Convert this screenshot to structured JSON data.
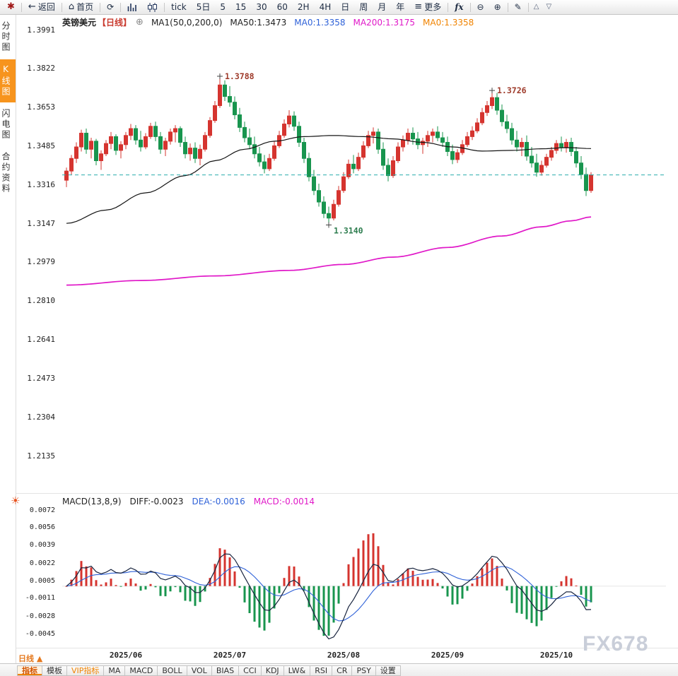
{
  "watermark": "FX678",
  "toolbar": {
    "items": [
      {
        "t": "icon",
        "name": "app-icon",
        "glyph": "✱",
        "cls": "tb-red",
        "inter": false
      },
      {
        "t": "sep"
      },
      {
        "t": "btn",
        "name": "back-button",
        "glyph": "←",
        "label": "返回"
      },
      {
        "t": "sep"
      },
      {
        "t": "btn",
        "name": "home-button",
        "glyph": "⌂",
        "label": "首页"
      },
      {
        "t": "sep"
      },
      {
        "t": "icon",
        "name": "refresh-icon",
        "glyph": "⟳",
        "inter": true
      },
      {
        "t": "sep"
      },
      {
        "t": "svg",
        "name": "timeshare-chart-icon",
        "icon": "bars"
      },
      {
        "t": "svg",
        "name": "candlestick-chart-icon",
        "icon": "candles"
      },
      {
        "t": "sep"
      },
      {
        "t": "txt",
        "name": "period-tick-button",
        "label": "tick"
      },
      {
        "t": "txt",
        "name": "period-5day-button",
        "label": "5日"
      },
      {
        "t": "txt",
        "name": "period-5-button",
        "label": "5"
      },
      {
        "t": "txt",
        "name": "period-15-button",
        "label": "15"
      },
      {
        "t": "txt",
        "name": "period-30-button",
        "label": "30"
      },
      {
        "t": "txt",
        "name": "period-60-button",
        "label": "60"
      },
      {
        "t": "txt",
        "name": "period-2h-button",
        "label": "2H"
      },
      {
        "t": "txt",
        "name": "period-day-button-4h",
        "label": "4H"
      },
      {
        "t": "txt",
        "name": "period-day-button",
        "label": "日"
      },
      {
        "t": "txt",
        "name": "period-week-button",
        "label": "周"
      },
      {
        "t": "txt",
        "name": "period-month-button",
        "label": "月"
      },
      {
        "t": "txt",
        "name": "period-year-button",
        "label": "年"
      },
      {
        "t": "btn",
        "name": "more-button",
        "glyph": "≡",
        "label": "更多"
      },
      {
        "t": "sep"
      },
      {
        "t": "txt",
        "name": "fx-functions-button",
        "label": "fx",
        "cls": "tb-fx"
      },
      {
        "t": "sep"
      },
      {
        "t": "icon",
        "name": "zoom-out-icon",
        "glyph": "⊖",
        "inter": true
      },
      {
        "t": "icon",
        "name": "zoom-in-icon",
        "glyph": "⊕",
        "inter": true
      },
      {
        "t": "sep"
      },
      {
        "t": "icon",
        "name": "draw-pencil-icon",
        "glyph": "✎",
        "inter": true
      },
      {
        "t": "sep"
      },
      {
        "t": "icon",
        "name": "collapse-up-icon",
        "glyph": "△",
        "cls": "tb-tri",
        "inter": true
      },
      {
        "t": "icon",
        "name": "collapse-down-icon",
        "glyph": "▽",
        "cls": "tb-tri",
        "inter": true
      }
    ]
  },
  "sidebar": {
    "sun_glyph": "☀",
    "items": [
      {
        "label": "分时图",
        "name": "tab-timeshare-chart",
        "active": false
      },
      {
        "label": "K线图",
        "name": "tab-kline-chart",
        "active": true
      },
      {
        "label": "闪电图",
        "name": "tab-lightning-chart",
        "active": false
      },
      {
        "label": "合约资料",
        "name": "tab-contract-info",
        "active": false
      }
    ]
  },
  "price_header": {
    "parts": [
      {
        "text": "英镑美元",
        "cls": "c-sym",
        "name": "symbol-name",
        "inter": false
      },
      {
        "text": "【日线】",
        "cls": "c-period",
        "name": "period-tag",
        "inter": false
      },
      {
        "text": "⊕",
        "cls": "c-plus",
        "name": "add-indicator-icon",
        "inter": true
      },
      {
        "text": "MA1(50,0,200,0)",
        "cls": "c-k",
        "name": "ma-settings-label",
        "inter": false
      },
      {
        "text": "MA50:1.3473",
        "cls": "c-k",
        "name": "ma50-value",
        "inter": false
      },
      {
        "text": "MA0:1.3358",
        "cls": "c-blue",
        "name": "ma0-blue-value",
        "inter": false
      },
      {
        "text": "MA200:1.3175",
        "cls": "c-magenta",
        "name": "ma200-value",
        "inter": false
      },
      {
        "text": "MA0:1.3358",
        "cls": "c-orange",
        "name": "ma0-orange-value",
        "inter": false
      }
    ]
  },
  "macd_header": {
    "parts": [
      {
        "text": "MACD(13,8,9)",
        "cls": "c-k",
        "name": "macd-title",
        "inter": false
      },
      {
        "text": "DIFF:-0.0023",
        "cls": "c-k",
        "name": "diff-value",
        "inter": false
      },
      {
        "text": "DEA:-0.0016",
        "cls": "c-blue",
        "name": "dea-value",
        "inter": false
      },
      {
        "text": "MACD:-0.0014",
        "cls": "c-magenta",
        "name": "macd-value",
        "inter": false
      }
    ]
  },
  "bottom_bar": {
    "period_label": "日线",
    "period_arrow": "▲",
    "buttons": [
      {
        "label": "指标",
        "name": "indicator-tab",
        "selected": true
      },
      {
        "label": "模板",
        "name": "template-tab"
      },
      {
        "label": "VIP指标",
        "name": "vip-indicator-tab",
        "vip": true
      },
      {
        "label": "MA",
        "name": "ma-indicator-button"
      },
      {
        "label": "MACD",
        "name": "macd-indicator-button"
      },
      {
        "label": "BOLL",
        "name": "boll-indicator-button"
      },
      {
        "label": "VOL",
        "name": "vol-indicator-button"
      },
      {
        "label": "BIAS",
        "name": "bias-indicator-button"
      },
      {
        "label": "CCI",
        "name": "cci-indicator-button"
      },
      {
        "label": "KDJ",
        "name": "kdj-indicator-button"
      },
      {
        "label": "LW&",
        "name": "lw-indicator-button"
      },
      {
        "label": "RSI",
        "name": "rsi-indicator-button"
      },
      {
        "label": "CR",
        "name": "cr-indicator-button"
      },
      {
        "label": "PSY",
        "name": "psy-indicator-button"
      },
      {
        "label": "设置",
        "name": "settings-button"
      }
    ]
  },
  "chart_data": {
    "type": "candlestick",
    "symbol": "英镑美元",
    "period": "日线",
    "price_axis": {
      "max": 1.3991,
      "min": 1.2135
    },
    "macd_axis": {
      "max": 0.0072,
      "min": -0.0045
    },
    "y_axis_labels": [
      "1.3991",
      "1.3822",
      "1.3653",
      "1.3485",
      "1.3316",
      "1.3147",
      "1.2979",
      "1.2810",
      "1.2641",
      "1.2473",
      "1.2304",
      "1.2135"
    ],
    "macd_y_axis_labels": [
      "0.0072",
      "0.0056",
      "0.0039",
      "0.0022",
      "0.0005",
      "-0.0011",
      "-0.0028",
      "-0.0045"
    ],
    "x_axis_labels": [
      {
        "label": "2025/06",
        "index": 12
      },
      {
        "label": "2025/07",
        "index": 33
      },
      {
        "label": "2025/08",
        "index": 56
      },
      {
        "label": "2025/09",
        "index": 77
      },
      {
        "label": "2025/10",
        "index": 99
      }
    ],
    "dashed_line_price": 1.3358,
    "annotations": [
      {
        "text": "1.3788",
        "index": 31,
        "price": 1.3788,
        "kind": "high"
      },
      {
        "text": "1.3726",
        "index": 86,
        "price": 1.3726,
        "kind": "high"
      },
      {
        "text": "1.3140",
        "index": 53,
        "price": 1.314,
        "kind": "low"
      }
    ],
    "macd_params": "(13,8,9)",
    "macd_last": {
      "diff": -0.0023,
      "dea": -0.0016,
      "macd": -0.0014
    },
    "overlays": {
      "ma50_points": [
        [
          0,
          1.3147
        ],
        [
          8,
          1.3205
        ],
        [
          16,
          1.328
        ],
        [
          24,
          1.3355
        ],
        [
          30,
          1.342
        ],
        [
          36,
          1.347
        ],
        [
          42,
          1.3505
        ],
        [
          48,
          1.3525
        ],
        [
          54,
          1.353
        ],
        [
          60,
          1.3525
        ],
        [
          66,
          1.3515
        ],
        [
          72,
          1.35
        ],
        [
          78,
          1.348
        ],
        [
          84,
          1.3462
        ],
        [
          90,
          1.3465
        ],
        [
          96,
          1.3472
        ],
        [
          101,
          1.3477
        ],
        [
          106,
          1.3473
        ]
      ],
      "ma200_points": [
        [
          0,
          1.2878
        ],
        [
          15,
          1.2898
        ],
        [
          30,
          1.2918
        ],
        [
          45,
          1.2942
        ],
        [
          56,
          1.2968
        ],
        [
          66,
          1.3
        ],
        [
          77,
          1.3042
        ],
        [
          88,
          1.3092
        ],
        [
          96,
          1.3132
        ],
        [
          102,
          1.3158
        ],
        [
          106,
          1.3175
        ]
      ]
    },
    "colors": {
      "up": "#d5342f",
      "down": "#18954e",
      "ma50": "#141414",
      "ma200": "#e018c8",
      "diff": "#17233d",
      "dea": "#2f62d8",
      "dashed": "#2aacac",
      "high_label": "#9e3a2a",
      "low_label": "#2e7d4f",
      "accent": "#f08300"
    },
    "candles": [
      [
        1.3335,
        1.339,
        1.3305,
        1.3375
      ],
      [
        1.3375,
        1.3445,
        1.336,
        1.343
      ],
      [
        1.343,
        1.35,
        1.341,
        1.348
      ],
      [
        1.348,
        1.3555,
        1.346,
        1.354
      ],
      [
        1.354,
        1.356,
        1.345,
        1.347
      ],
      [
        1.347,
        1.352,
        1.343,
        1.3505
      ],
      [
        1.3505,
        1.3515,
        1.34,
        1.342
      ],
      [
        1.342,
        1.3465,
        1.338,
        1.345
      ],
      [
        1.345,
        1.351,
        1.344,
        1.3495
      ],
      [
        1.3495,
        1.3545,
        1.347,
        1.3525
      ],
      [
        1.3525,
        1.3535,
        1.3445,
        1.3465
      ],
      [
        1.3465,
        1.3505,
        1.343,
        1.349
      ],
      [
        1.349,
        1.3545,
        1.347,
        1.353
      ],
      [
        1.353,
        1.358,
        1.351,
        1.356
      ],
      [
        1.356,
        1.3575,
        1.349,
        1.351
      ],
      [
        1.351,
        1.355,
        1.346,
        1.348
      ],
      [
        1.348,
        1.354,
        1.347,
        1.3525
      ],
      [
        1.3525,
        1.3585,
        1.3515,
        1.357
      ],
      [
        1.357,
        1.359,
        1.3505,
        1.3525
      ],
      [
        1.3525,
        1.3545,
        1.345,
        1.347
      ],
      [
        1.347,
        1.352,
        1.344,
        1.3505
      ],
      [
        1.3505,
        1.356,
        1.349,
        1.3545
      ],
      [
        1.3545,
        1.3575,
        1.35,
        1.356
      ],
      [
        1.356,
        1.357,
        1.348,
        1.35
      ],
      [
        1.35,
        1.3525,
        1.343,
        1.345
      ],
      [
        1.345,
        1.3495,
        1.342,
        1.3475
      ],
      [
        1.3475,
        1.35,
        1.341,
        1.343
      ],
      [
        1.343,
        1.349,
        1.34,
        1.347
      ],
      [
        1.347,
        1.3545,
        1.346,
        1.353
      ],
      [
        1.353,
        1.361,
        1.352,
        1.3595
      ],
      [
        1.3595,
        1.368,
        1.3585,
        1.366
      ],
      [
        1.366,
        1.3788,
        1.365,
        1.375
      ],
      [
        1.375,
        1.377,
        1.368,
        1.37
      ],
      [
        1.37,
        1.3745,
        1.3655,
        1.3675
      ],
      [
        1.3675,
        1.37,
        1.36,
        1.362
      ],
      [
        1.362,
        1.365,
        1.3545,
        1.3565
      ],
      [
        1.3565,
        1.359,
        1.35,
        1.352
      ],
      [
        1.352,
        1.356,
        1.347,
        1.349
      ],
      [
        1.349,
        1.3525,
        1.343,
        1.345
      ],
      [
        1.345,
        1.348,
        1.3395,
        1.3415
      ],
      [
        1.3415,
        1.3445,
        1.3365,
        1.3385
      ],
      [
        1.3385,
        1.345,
        1.3375,
        1.343
      ],
      [
        1.343,
        1.3505,
        1.342,
        1.3485
      ],
      [
        1.3485,
        1.355,
        1.3475,
        1.353
      ],
      [
        1.353,
        1.36,
        1.352,
        1.358
      ],
      [
        1.358,
        1.364,
        1.3565,
        1.3615
      ],
      [
        1.3615,
        1.3635,
        1.355,
        1.357
      ],
      [
        1.357,
        1.359,
        1.348,
        1.35
      ],
      [
        1.35,
        1.352,
        1.341,
        1.343
      ],
      [
        1.343,
        1.3455,
        1.333,
        1.335
      ],
      [
        1.335,
        1.338,
        1.327,
        1.329
      ],
      [
        1.329,
        1.332,
        1.322,
        1.324
      ],
      [
        1.324,
        1.3265,
        1.317,
        1.319
      ],
      [
        1.319,
        1.322,
        1.314,
        1.317
      ],
      [
        1.317,
        1.325,
        1.316,
        1.323
      ],
      [
        1.323,
        1.331,
        1.322,
        1.329
      ],
      [
        1.329,
        1.337,
        1.328,
        1.335
      ],
      [
        1.335,
        1.3425,
        1.334,
        1.3405
      ],
      [
        1.3405,
        1.3445,
        1.3365,
        1.3385
      ],
      [
        1.3385,
        1.3455,
        1.3375,
        1.3435
      ],
      [
        1.3435,
        1.3505,
        1.3425,
        1.3485
      ],
      [
        1.3485,
        1.355,
        1.3475,
        1.353
      ],
      [
        1.353,
        1.3565,
        1.3495,
        1.3545
      ],
      [
        1.3545,
        1.356,
        1.345,
        1.347
      ],
      [
        1.347,
        1.35,
        1.338,
        1.34
      ],
      [
        1.34,
        1.343,
        1.333,
        1.3355
      ],
      [
        1.3355,
        1.344,
        1.3345,
        1.342
      ],
      [
        1.342,
        1.35,
        1.341,
        1.348
      ],
      [
        1.348,
        1.353,
        1.346,
        1.351
      ],
      [
        1.351,
        1.356,
        1.349,
        1.354
      ],
      [
        1.354,
        1.3565,
        1.349,
        1.3515
      ],
      [
        1.3515,
        1.3545,
        1.347,
        1.349
      ],
      [
        1.349,
        1.352,
        1.345,
        1.3505
      ],
      [
        1.3505,
        1.355,
        1.348,
        1.353
      ],
      [
        1.353,
        1.356,
        1.35,
        1.3545
      ],
      [
        1.3545,
        1.357,
        1.3505,
        1.352
      ],
      [
        1.352,
        1.3545,
        1.348,
        1.35
      ],
      [
        1.35,
        1.3525,
        1.344,
        1.346
      ],
      [
        1.346,
        1.349,
        1.3405,
        1.3425
      ],
      [
        1.3425,
        1.347,
        1.341,
        1.3455
      ],
      [
        1.3455,
        1.351,
        1.3445,
        1.349
      ],
      [
        1.349,
        1.3545,
        1.348,
        1.3525
      ],
      [
        1.3525,
        1.357,
        1.351,
        1.355
      ],
      [
        1.355,
        1.3605,
        1.354,
        1.3585
      ],
      [
        1.3585,
        1.365,
        1.3575,
        1.363
      ],
      [
        1.363,
        1.368,
        1.3615,
        1.366
      ],
      [
        1.366,
        1.3726,
        1.3645,
        1.3695
      ],
      [
        1.3695,
        1.3715,
        1.362,
        1.364
      ],
      [
        1.364,
        1.3665,
        1.357,
        1.359
      ],
      [
        1.359,
        1.362,
        1.354,
        1.356
      ],
      [
        1.356,
        1.3585,
        1.349,
        1.351
      ],
      [
        1.351,
        1.355,
        1.346,
        1.348
      ],
      [
        1.348,
        1.352,
        1.344,
        1.35
      ],
      [
        1.35,
        1.353,
        1.342,
        1.344
      ],
      [
        1.344,
        1.348,
        1.339,
        1.341
      ],
      [
        1.341,
        1.345,
        1.335,
        1.337
      ],
      [
        1.337,
        1.342,
        1.3355,
        1.34
      ],
      [
        1.34,
        1.345,
        1.339,
        1.3435
      ],
      [
        1.3435,
        1.348,
        1.342,
        1.3465
      ],
      [
        1.3465,
        1.351,
        1.345,
        1.3495
      ],
      [
        1.3495,
        1.3525,
        1.346,
        1.348
      ],
      [
        1.348,
        1.3515,
        1.3455,
        1.35
      ],
      [
        1.35,
        1.352,
        1.344,
        1.346
      ],
      [
        1.346,
        1.348,
        1.339,
        1.341
      ],
      [
        1.341,
        1.344,
        1.334,
        1.336
      ],
      [
        1.336,
        1.339,
        1.3266,
        1.329
      ],
      [
        1.329,
        1.337,
        1.328,
        1.3358
      ]
    ]
  }
}
